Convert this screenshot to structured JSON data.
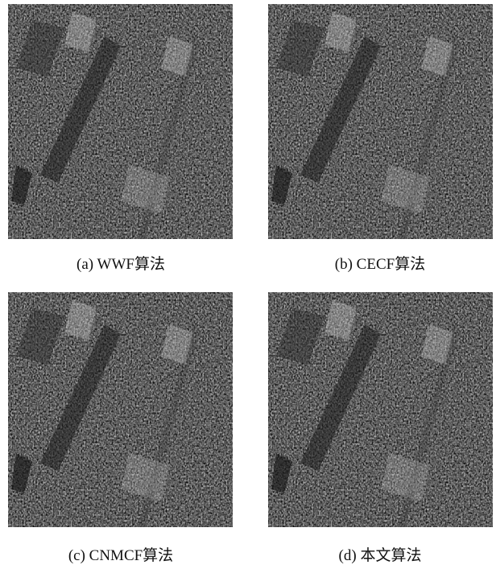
{
  "figures": [
    {
      "caption": "(a) WWF算法"
    },
    {
      "caption": "(b) CECF算法"
    },
    {
      "caption": "(c) CNMCF算法"
    },
    {
      "caption": "(d) 本文算法"
    }
  ]
}
